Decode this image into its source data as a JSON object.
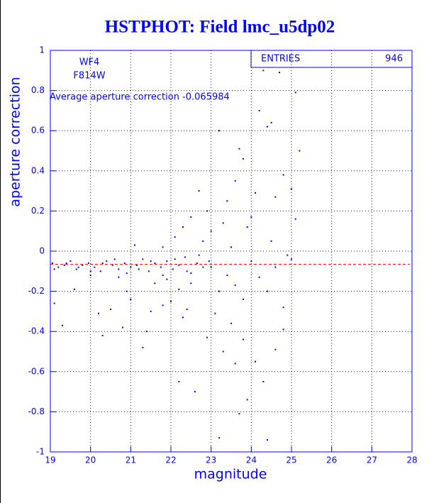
{
  "chart_data": {
    "type": "scatter",
    "title": "HSTPHOT: Field lmc_u5dp02",
    "x_label": "magnitude",
    "y_label": "aperture correction",
    "annotations": [
      "WF4",
      "F814W",
      "Average aperture correction -0.065984"
    ],
    "stats": {
      "label": "ENTRIES",
      "value": "946"
    },
    "reference_line": {
      "y": -0.065984,
      "color": "#ff0000"
    },
    "color": "#0000ff",
    "grid": true,
    "xlim": [
      19,
      28
    ],
    "ylim": [
      -1,
      1
    ],
    "xticks": [
      19,
      20,
      21,
      22,
      23,
      24,
      25,
      26,
      27,
      28
    ],
    "yticks": [
      -1,
      -0.8,
      -0.6,
      -0.4,
      -0.2,
      0,
      0.2,
      0.4,
      0.6,
      0.8,
      1
    ],
    "x": [
      19.05,
      19.2,
      19.35,
      19.5,
      19.65,
      19.8,
      19.95,
      20.1,
      20.25,
      20.4,
      20.55,
      20.7,
      20.85,
      21.0,
      21.15,
      21.3,
      21.45,
      21.6,
      21.75,
      21.9,
      22.05,
      22.2,
      22.35,
      22.5,
      22.65,
      22.8,
      22.95,
      19.1,
      19.4,
      19.7,
      20.0,
      20.3,
      20.6,
      20.9,
      21.2,
      21.5,
      21.8,
      22.1,
      22.4,
      22.7,
      23.0,
      19.1,
      19.3,
      19.6,
      20.2,
      20.3,
      20.5,
      20.8,
      21.0,
      21.3,
      21.5,
      21.8,
      22.0,
      22.2,
      22.4,
      22.6,
      22.9,
      23.2,
      23.3,
      23.5,
      23.6,
      23.7,
      23.8,
      23.9,
      24.1,
      24.3,
      24.4,
      24.6,
      24.8,
      23.1,
      22.3,
      21.4,
      20.9,
      21.1,
      21.8,
      22.1,
      22.3,
      22.5,
      22.7,
      22.9,
      23.0,
      23.2,
      23.4,
      23.6,
      23.8,
      24.0,
      24.2,
      24.3,
      24.4,
      24.5,
      24.6,
      24.7,
      24.8,
      25.0,
      25.1,
      25.2,
      25.1,
      24.5,
      23.5,
      23.7,
      23.9,
      24.1,
      22.8,
      23.3,
      24.9,
      23.2,
      23.4,
      23.6,
      23.8,
      24.0,
      24.2,
      24.4,
      24.6,
      24.8,
      25.0,
      22.5,
      22.2,
      21.9,
      21.6,
      20.7,
      20.0
    ],
    "values": [
      -0.06,
      -0.08,
      -0.07,
      -0.05,
      -0.09,
      -0.07,
      -0.06,
      -0.08,
      -0.1,
      -0.05,
      -0.07,
      -0.09,
      -0.06,
      -0.08,
      -0.07,
      -0.04,
      -0.1,
      -0.06,
      -0.08,
      -0.05,
      -0.09,
      -0.07,
      -0.03,
      -0.11,
      -0.06,
      -0.08,
      -0.05,
      -0.09,
      -0.06,
      -0.08,
      -0.1,
      -0.06,
      -0.04,
      -0.11,
      -0.09,
      -0.05,
      -0.12,
      -0.04,
      -0.1,
      -0.02,
      -0.08,
      -0.26,
      -0.37,
      -0.19,
      -0.31,
      -0.42,
      -0.29,
      -0.38,
      -0.24,
      -0.48,
      -0.3,
      -0.27,
      -0.25,
      -0.65,
      -0.29,
      -0.7,
      -0.43,
      -0.93,
      -0.5,
      -0.36,
      -0.56,
      -0.81,
      -0.44,
      -0.74,
      -0.55,
      -0.65,
      -0.94,
      -0.49,
      -0.39,
      -0.31,
      -0.33,
      -0.4,
      -0.2,
      0.03,
      0.02,
      0.07,
      0.12,
      0.17,
      0.3,
      0.2,
      0.1,
      0.6,
      0.25,
      0.35,
      0.46,
      0.17,
      0.7,
      0.9,
      0.62,
      0.64,
      0.27,
      0.89,
      0.38,
      0.31,
      0.79,
      0.5,
      0.16,
      0.05,
      0.02,
      0.51,
      0.12,
      0.29,
      0.05,
      0.14,
      -0.02,
      -0.2,
      -0.12,
      -0.17,
      -0.24,
      -0.05,
      -0.13,
      -0.2,
      -0.08,
      -0.28,
      -0.04,
      -0.16,
      -0.19,
      -0.14,
      -0.16,
      -0.13,
      -0.12
    ]
  }
}
